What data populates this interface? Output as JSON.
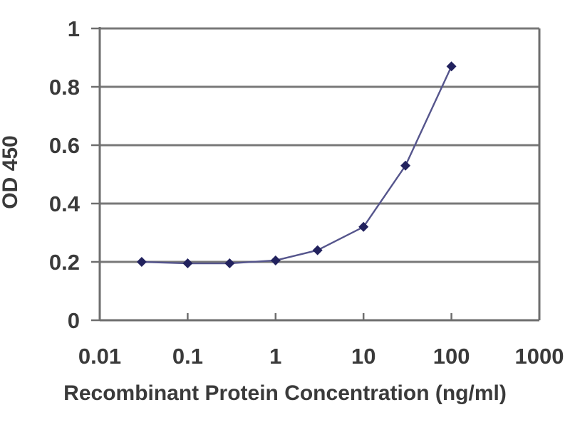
{
  "chart_data": {
    "type": "line",
    "title": "",
    "xlabel": "Recombinant Protein Concentration (ng/ml)",
    "ylabel": "OD 450",
    "x_scale": "log",
    "y_scale": "linear",
    "xlim": [
      0.01,
      1000
    ],
    "ylim": [
      0,
      1
    ],
    "x_ticks": [
      0.01,
      0.1,
      1,
      10,
      100,
      1000
    ],
    "x_tick_labels": [
      "0.01",
      "0.1",
      "1",
      "10",
      "100",
      "1000"
    ],
    "y_ticks": [
      0,
      0.2,
      0.4,
      0.6,
      0.8,
      1
    ],
    "y_tick_labels": [
      "0",
      "0.2",
      "0.4",
      "0.6",
      "0.8",
      "1"
    ],
    "grid": "horizontal",
    "legend": "none",
    "series": [
      {
        "name": "OD 450",
        "marker": "diamond",
        "x": [
          0.03,
          0.1,
          0.3,
          1,
          3,
          10,
          30,
          100
        ],
        "y": [
          0.2,
          0.195,
          0.195,
          0.205,
          0.24,
          0.32,
          0.53,
          0.87
        ]
      }
    ],
    "colors": {
      "line": "#55558c",
      "marker": "#22225e",
      "grid": "#787878",
      "axis": "#6e6e6e",
      "text": "#3a3a3a",
      "background": "#ffffff"
    }
  }
}
